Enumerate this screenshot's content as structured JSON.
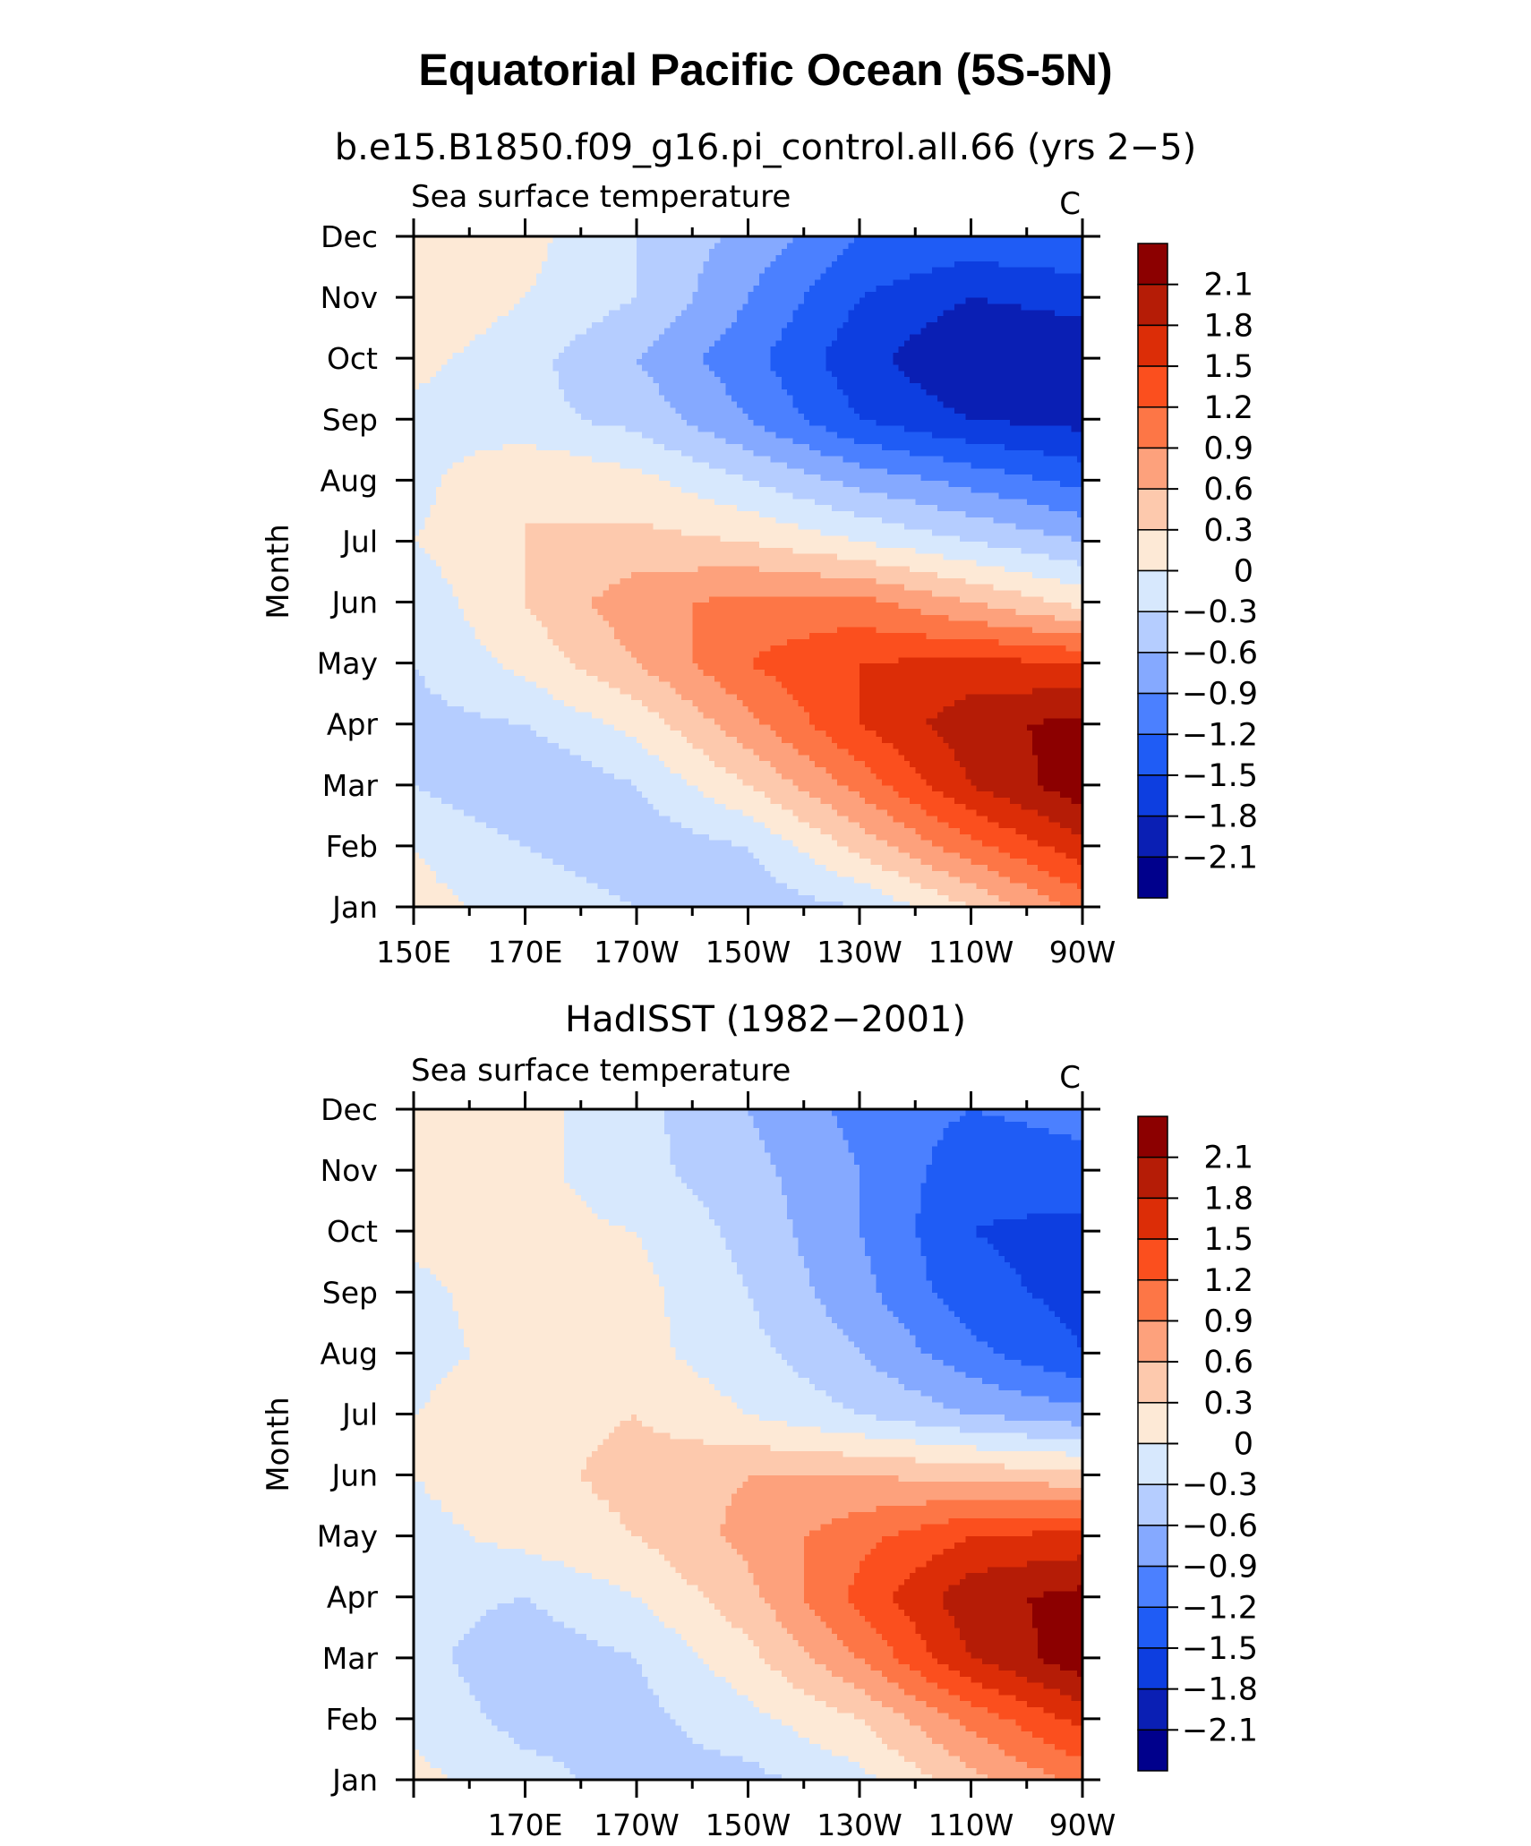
{
  "title": "Equatorial Pacific Ocean (5S-5N)",
  "levels": [
    -2.1,
    -1.8,
    -1.5,
    -1.2,
    -0.9,
    -0.6,
    -0.3,
    0,
    0.3,
    0.6,
    0.9,
    1.2,
    1.5,
    1.8,
    2.1
  ],
  "colorbar_labels": [
    "2.1",
    "1.8",
    "1.5",
    "1.2",
    "0.9",
    "0.6",
    "0.3",
    "0",
    "−0.3",
    "−0.6",
    "−0.9",
    "−1.2",
    "−1.5",
    "−1.8",
    "−2.1"
  ],
  "colors": [
    "#00008c",
    "#0a1fb4",
    "#0d3ee0",
    "#1f5cf5",
    "#4b80ff",
    "#85a9ff",
    "#b5cdff",
    "#d7e8fd",
    "#fde9d6",
    "#fdc9ad",
    "#fda17c",
    "#fd7646",
    "#fb4f1e",
    "#dc2d07",
    "#b51c06",
    "#8c0000"
  ],
  "chart_data": [
    {
      "type": "heatmap",
      "title": "b.e15.B1850.f09_g16.pi_control.all.66 (yrs 2−5)",
      "left_label": "Sea surface temperature",
      "right_label": "C",
      "ylabel": "Month",
      "xlim": [
        150,
        270
      ],
      "x_labels": [
        "150E",
        "170E",
        "170W",
        "150W",
        "130W",
        "110W",
        "90W"
      ],
      "y_labels": [
        "Jan",
        "Feb",
        "Mar",
        "Apr",
        "May",
        "Jun",
        "Jul",
        "Aug",
        "Sep",
        "Oct",
        "Nov",
        "Dec"
      ],
      "x": [
        150,
        170,
        190,
        210,
        230,
        250,
        270
      ],
      "y": [
        "Jan",
        "Feb",
        "Mar",
        "Apr",
        "May",
        "Jun",
        "Jul",
        "Aug",
        "Sep",
        "Oct",
        "Nov",
        "Dec"
      ],
      "values": [
        [
          0.1,
          -0.1,
          -0.3,
          -0.5,
          -0.3,
          0.3,
          1.0
        ],
        [
          0.0,
          -0.3,
          -0.5,
          -0.3,
          0.4,
          1.1,
          1.7
        ],
        [
          -0.3,
          -0.6,
          -0.3,
          0.3,
          1.0,
          1.8,
          2.3
        ],
        [
          -0.4,
          -0.3,
          0.1,
          0.8,
          1.5,
          2.0,
          2.2
        ],
        [
          -0.3,
          0.1,
          0.6,
          1.2,
          1.5,
          1.6,
          1.5
        ],
        [
          -0.2,
          0.3,
          0.8,
          1.0,
          1.0,
          0.6,
          0.2
        ],
        [
          0.0,
          0.3,
          0.4,
          0.3,
          0.0,
          -0.3,
          -0.6
        ],
        [
          -0.1,
          0.3,
          0.1,
          -0.3,
          -0.7,
          -1.0,
          -1.3
        ],
        [
          -0.1,
          -0.2,
          -0.4,
          -0.9,
          -1.5,
          -1.8,
          -1.9
        ],
        [
          0.1,
          -0.2,
          -0.6,
          -1.1,
          -1.7,
          -2.1,
          -2.0
        ],
        [
          0.3,
          0.0,
          -0.3,
          -0.9,
          -1.5,
          -1.8,
          -1.7
        ],
        [
          0.3,
          0.1,
          -0.3,
          -0.7,
          -1.2,
          -1.3,
          -1.2
        ]
      ]
    },
    {
      "type": "heatmap",
      "title": "HadISST (1982−2001)",
      "left_label": "Sea surface temperature",
      "right_label": "C",
      "ylabel": "Month",
      "xlim": [
        150,
        270
      ],
      "x_labels": [
        "170E",
        "170W",
        "150W",
        "130W",
        "110W",
        "90W"
      ],
      "y_labels": [
        "Jan",
        "Feb",
        "Mar",
        "Apr",
        "May",
        "Jun",
        "Jul",
        "Aug",
        "Sep",
        "Oct",
        "Nov",
        "Dec"
      ],
      "x": [
        150,
        170,
        190,
        210,
        230,
        250,
        270
      ],
      "y": [
        "Jan",
        "Feb",
        "Mar",
        "Apr",
        "May",
        "Jun",
        "Jul",
        "Aug",
        "Sep",
        "Oct",
        "Nov",
        "Dec"
      ],
      "values": [
        [
          0.1,
          -0.2,
          -0.4,
          -0.4,
          -0.1,
          0.5,
          1.0
        ],
        [
          -0.1,
          -0.4,
          -0.4,
          -0.1,
          0.3,
          1.0,
          1.6
        ],
        [
          -0.2,
          -0.5,
          -0.3,
          0.2,
          0.9,
          1.8,
          2.3
        ],
        [
          -0.2,
          -0.3,
          0.0,
          0.5,
          1.3,
          2.0,
          2.2
        ],
        [
          -0.1,
          0.1,
          0.3,
          0.7,
          1.1,
          1.5,
          1.6
        ],
        [
          0.0,
          0.2,
          0.4,
          0.6,
          0.6,
          0.5,
          0.4
        ],
        [
          0.0,
          0.2,
          0.3,
          0.0,
          -0.3,
          -0.6,
          -0.8
        ],
        [
          -0.1,
          0.1,
          0.1,
          -0.2,
          -0.6,
          -1.1,
          -1.5
        ],
        [
          -0.1,
          0.2,
          0.1,
          -0.3,
          -0.8,
          -1.4,
          -1.6
        ],
        [
          0.1,
          0.1,
          0.0,
          -0.4,
          -0.9,
          -1.5,
          -1.6
        ],
        [
          0.1,
          0.1,
          -0.2,
          -0.5,
          -0.9,
          -1.4,
          -1.3
        ],
        [
          0.1,
          0.1,
          -0.2,
          -0.6,
          -1.0,
          -1.2,
          -1.1
        ]
      ]
    }
  ]
}
